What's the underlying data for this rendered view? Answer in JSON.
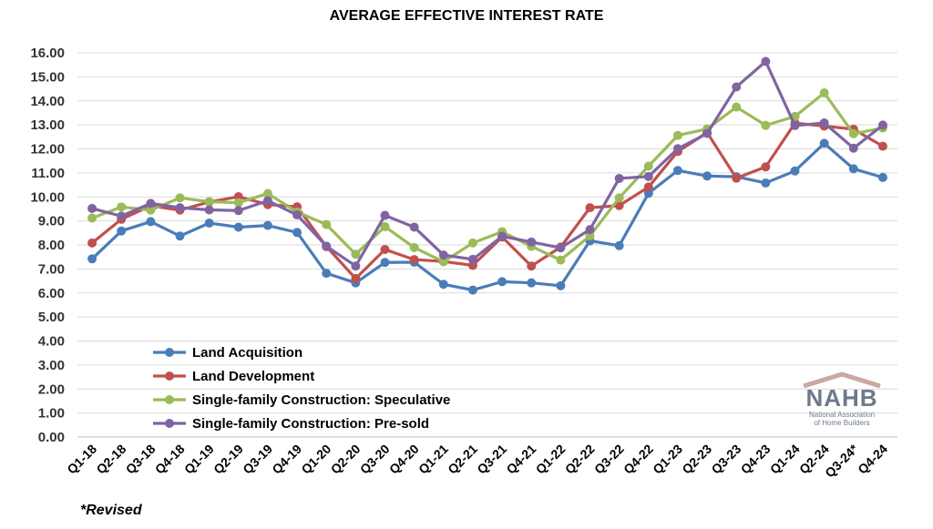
{
  "chart_data": {
    "type": "line",
    "title": "AVERAGE EFFECTIVE INTEREST RATE",
    "xlabel": "",
    "ylabel": "",
    "ylim": [
      0,
      16
    ],
    "yticks": [
      "0.00",
      "1.00",
      "2.00",
      "3.00",
      "4.00",
      "5.00",
      "6.00",
      "7.00",
      "8.00",
      "9.00",
      "10.00",
      "11.00",
      "12.00",
      "13.00",
      "14.00",
      "15.00",
      "16.00"
    ],
    "grid": "horizontal",
    "legend_position": "bottom-left",
    "categories": [
      "Q1-18",
      "Q2-18",
      "Q3-18",
      "Q4-18",
      "Q1-19",
      "Q2-19",
      "Q3-19",
      "Q4-19",
      "Q1-20",
      "Q2-20",
      "Q3-20",
      "Q4-20",
      "Q1-21",
      "Q2-21",
      "Q3-21",
      "Q4-21",
      "Q1-22",
      "Q2-22",
      "Q3-22",
      "Q4-22",
      "Q1-23",
      "Q2-23",
      "Q3-23",
      "Q4-23",
      "Q1-24",
      "Q2-24",
      "Q3-24*",
      "Q4-24"
    ],
    "series": [
      {
        "name": "Land Acquisition",
        "color": "#4a7db8",
        "values": [
          7.42,
          8.58,
          8.97,
          8.37,
          8.91,
          8.74,
          8.81,
          8.52,
          6.82,
          6.42,
          7.27,
          7.28,
          6.36,
          6.12,
          6.47,
          6.42,
          6.3,
          8.17,
          7.97,
          10.15,
          11.1,
          10.87,
          10.84,
          10.58,
          11.08,
          12.23,
          11.17,
          10.81
        ]
      },
      {
        "name": "Land Development",
        "color": "#c0504d",
        "values": [
          8.08,
          9.07,
          9.63,
          9.45,
          9.79,
          10.01,
          9.68,
          9.59,
          7.93,
          6.6,
          7.81,
          7.39,
          7.31,
          7.15,
          8.33,
          7.12,
          7.91,
          9.55,
          9.64,
          10.41,
          11.89,
          12.68,
          10.78,
          11.25,
          13.07,
          12.95,
          12.82,
          12.11
        ]
      },
      {
        "name": "Single-family Construction: Speculative",
        "color": "#9bbb59",
        "values": [
          9.12,
          9.58,
          9.45,
          9.96,
          9.8,
          9.76,
          10.14,
          9.37,
          8.85,
          7.61,
          8.76,
          7.89,
          7.3,
          8.08,
          8.55,
          7.94,
          7.37,
          8.38,
          9.96,
          11.28,
          12.56,
          12.83,
          13.74,
          12.98,
          13.35,
          14.33,
          12.63,
          12.87
        ]
      },
      {
        "name": "Single-family Construction: Pre-sold",
        "color": "#8064a2",
        "values": [
          9.52,
          9.2,
          9.73,
          9.55,
          9.46,
          9.43,
          9.84,
          9.25,
          7.95,
          7.12,
          9.23,
          8.74,
          7.58,
          7.4,
          8.36,
          8.12,
          7.88,
          8.64,
          10.77,
          10.85,
          12.01,
          12.64,
          14.58,
          15.64,
          12.97,
          13.08,
          12.03,
          12.99
        ]
      }
    ],
    "annotations": [
      "*Revised"
    ]
  },
  "logo": {
    "word": "NAHB",
    "subtitle_line1": "National Association",
    "subtitle_line2": "of Home Builders",
    "roof_color": "#c9a9a0",
    "text_color": "#6d7a8c"
  }
}
